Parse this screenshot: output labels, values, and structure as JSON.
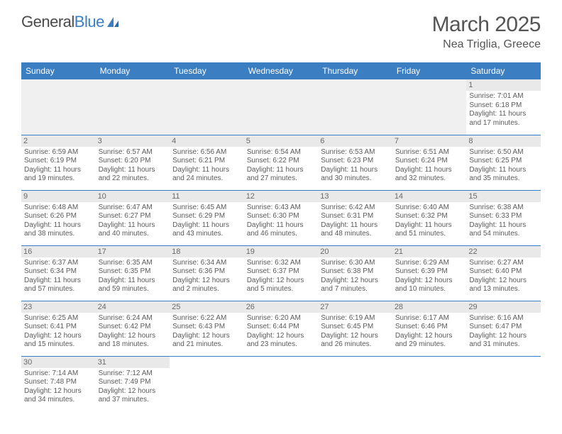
{
  "logo": {
    "text1": "General",
    "text2": "Blue"
  },
  "month": "March 2025",
  "location": "Nea Triglia, Greece",
  "dayHeaders": [
    "Sunday",
    "Monday",
    "Tuesday",
    "Wednesday",
    "Thursday",
    "Friday",
    "Saturday"
  ],
  "colors": {
    "headerBg": "#3b7ec1",
    "cellBorder": "#3b7ec1",
    "dayBarBg": "#e9e9e9",
    "textMuted": "#5a5a5a",
    "titleColor": "#555"
  },
  "weeks": [
    [
      null,
      null,
      null,
      null,
      null,
      null,
      {
        "d": "1",
        "sr": "Sunrise: 7:01 AM",
        "ss": "Sunset: 6:18 PM",
        "dl1": "Daylight: 11 hours",
        "dl2": "and 17 minutes."
      }
    ],
    [
      {
        "d": "2",
        "sr": "Sunrise: 6:59 AM",
        "ss": "Sunset: 6:19 PM",
        "dl1": "Daylight: 11 hours",
        "dl2": "and 19 minutes."
      },
      {
        "d": "3",
        "sr": "Sunrise: 6:57 AM",
        "ss": "Sunset: 6:20 PM",
        "dl1": "Daylight: 11 hours",
        "dl2": "and 22 minutes."
      },
      {
        "d": "4",
        "sr": "Sunrise: 6:56 AM",
        "ss": "Sunset: 6:21 PM",
        "dl1": "Daylight: 11 hours",
        "dl2": "and 24 minutes."
      },
      {
        "d": "5",
        "sr": "Sunrise: 6:54 AM",
        "ss": "Sunset: 6:22 PM",
        "dl1": "Daylight: 11 hours",
        "dl2": "and 27 minutes."
      },
      {
        "d": "6",
        "sr": "Sunrise: 6:53 AM",
        "ss": "Sunset: 6:23 PM",
        "dl1": "Daylight: 11 hours",
        "dl2": "and 30 minutes."
      },
      {
        "d": "7",
        "sr": "Sunrise: 6:51 AM",
        "ss": "Sunset: 6:24 PM",
        "dl1": "Daylight: 11 hours",
        "dl2": "and 32 minutes."
      },
      {
        "d": "8",
        "sr": "Sunrise: 6:50 AM",
        "ss": "Sunset: 6:25 PM",
        "dl1": "Daylight: 11 hours",
        "dl2": "and 35 minutes."
      }
    ],
    [
      {
        "d": "9",
        "sr": "Sunrise: 6:48 AM",
        "ss": "Sunset: 6:26 PM",
        "dl1": "Daylight: 11 hours",
        "dl2": "and 38 minutes."
      },
      {
        "d": "10",
        "sr": "Sunrise: 6:47 AM",
        "ss": "Sunset: 6:27 PM",
        "dl1": "Daylight: 11 hours",
        "dl2": "and 40 minutes."
      },
      {
        "d": "11",
        "sr": "Sunrise: 6:45 AM",
        "ss": "Sunset: 6:29 PM",
        "dl1": "Daylight: 11 hours",
        "dl2": "and 43 minutes."
      },
      {
        "d": "12",
        "sr": "Sunrise: 6:43 AM",
        "ss": "Sunset: 6:30 PM",
        "dl1": "Daylight: 11 hours",
        "dl2": "and 46 minutes."
      },
      {
        "d": "13",
        "sr": "Sunrise: 6:42 AM",
        "ss": "Sunset: 6:31 PM",
        "dl1": "Daylight: 11 hours",
        "dl2": "and 48 minutes."
      },
      {
        "d": "14",
        "sr": "Sunrise: 6:40 AM",
        "ss": "Sunset: 6:32 PM",
        "dl1": "Daylight: 11 hours",
        "dl2": "and 51 minutes."
      },
      {
        "d": "15",
        "sr": "Sunrise: 6:38 AM",
        "ss": "Sunset: 6:33 PM",
        "dl1": "Daylight: 11 hours",
        "dl2": "and 54 minutes."
      }
    ],
    [
      {
        "d": "16",
        "sr": "Sunrise: 6:37 AM",
        "ss": "Sunset: 6:34 PM",
        "dl1": "Daylight: 11 hours",
        "dl2": "and 57 minutes."
      },
      {
        "d": "17",
        "sr": "Sunrise: 6:35 AM",
        "ss": "Sunset: 6:35 PM",
        "dl1": "Daylight: 11 hours",
        "dl2": "and 59 minutes."
      },
      {
        "d": "18",
        "sr": "Sunrise: 6:34 AM",
        "ss": "Sunset: 6:36 PM",
        "dl1": "Daylight: 12 hours",
        "dl2": "and 2 minutes."
      },
      {
        "d": "19",
        "sr": "Sunrise: 6:32 AM",
        "ss": "Sunset: 6:37 PM",
        "dl1": "Daylight: 12 hours",
        "dl2": "and 5 minutes."
      },
      {
        "d": "20",
        "sr": "Sunrise: 6:30 AM",
        "ss": "Sunset: 6:38 PM",
        "dl1": "Daylight: 12 hours",
        "dl2": "and 7 minutes."
      },
      {
        "d": "21",
        "sr": "Sunrise: 6:29 AM",
        "ss": "Sunset: 6:39 PM",
        "dl1": "Daylight: 12 hours",
        "dl2": "and 10 minutes."
      },
      {
        "d": "22",
        "sr": "Sunrise: 6:27 AM",
        "ss": "Sunset: 6:40 PM",
        "dl1": "Daylight: 12 hours",
        "dl2": "and 13 minutes."
      }
    ],
    [
      {
        "d": "23",
        "sr": "Sunrise: 6:25 AM",
        "ss": "Sunset: 6:41 PM",
        "dl1": "Daylight: 12 hours",
        "dl2": "and 15 minutes."
      },
      {
        "d": "24",
        "sr": "Sunrise: 6:24 AM",
        "ss": "Sunset: 6:42 PM",
        "dl1": "Daylight: 12 hours",
        "dl2": "and 18 minutes."
      },
      {
        "d": "25",
        "sr": "Sunrise: 6:22 AM",
        "ss": "Sunset: 6:43 PM",
        "dl1": "Daylight: 12 hours",
        "dl2": "and 21 minutes."
      },
      {
        "d": "26",
        "sr": "Sunrise: 6:20 AM",
        "ss": "Sunset: 6:44 PM",
        "dl1": "Daylight: 12 hours",
        "dl2": "and 23 minutes."
      },
      {
        "d": "27",
        "sr": "Sunrise: 6:19 AM",
        "ss": "Sunset: 6:45 PM",
        "dl1": "Daylight: 12 hours",
        "dl2": "and 26 minutes."
      },
      {
        "d": "28",
        "sr": "Sunrise: 6:17 AM",
        "ss": "Sunset: 6:46 PM",
        "dl1": "Daylight: 12 hours",
        "dl2": "and 29 minutes."
      },
      {
        "d": "29",
        "sr": "Sunrise: 6:16 AM",
        "ss": "Sunset: 6:47 PM",
        "dl1": "Daylight: 12 hours",
        "dl2": "and 31 minutes."
      }
    ],
    [
      {
        "d": "30",
        "sr": "Sunrise: 7:14 AM",
        "ss": "Sunset: 7:48 PM",
        "dl1": "Daylight: 12 hours",
        "dl2": "and 34 minutes."
      },
      {
        "d": "31",
        "sr": "Sunrise: 7:12 AM",
        "ss": "Sunset: 7:49 PM",
        "dl1": "Daylight: 12 hours",
        "dl2": "and 37 minutes."
      },
      null,
      null,
      null,
      null,
      null
    ]
  ]
}
